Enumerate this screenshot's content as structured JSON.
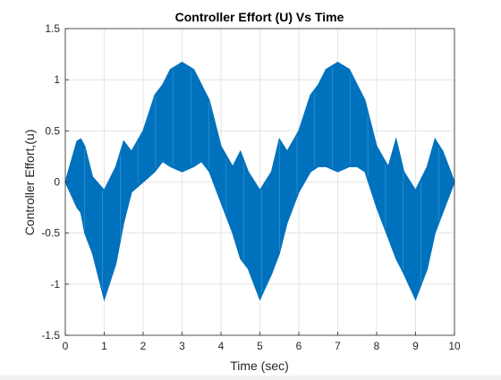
{
  "chart_data": {
    "type": "area",
    "title": "Controller Effort (U) Vs Time",
    "xlabel": "Time (sec)",
    "ylabel": "Controller Effort,(u)",
    "xlim": [
      0,
      10
    ],
    "ylim": [
      -1.5,
      1.5
    ],
    "xticks": [
      "0",
      "1",
      "2",
      "3",
      "4",
      "5",
      "6",
      "7",
      "8",
      "9",
      "10"
    ],
    "yticks": [
      "-1.5",
      "-1",
      "-0.5",
      "0",
      "0.5",
      "1",
      "1.5"
    ],
    "grid": true,
    "series": [
      {
        "color": "#0072BD",
        "note_style": "rapidly oscillating signal between upper and lower envelopes",
        "x": [
          0,
          0.3,
          0.4,
          0.5,
          0.7,
          1.0,
          1.3,
          1.5,
          1.7,
          2.0,
          2.3,
          2.5,
          2.7,
          3.0,
          3.3,
          3.5,
          3.7,
          4.0,
          4.3,
          4.5,
          4.7,
          5.0,
          5.3,
          5.5,
          5.7,
          6.0,
          6.3,
          6.5,
          6.7,
          7.0,
          7.3,
          7.5,
          7.7,
          8.0,
          8.3,
          8.5,
          8.7,
          9.0,
          9.3,
          9.5,
          9.7,
          10.0
        ],
        "upper": [
          0,
          0.4,
          0.42,
          0.35,
          0.05,
          -0.08,
          0.15,
          0.4,
          0.3,
          0.5,
          0.85,
          0.95,
          1.1,
          1.17,
          1.1,
          0.95,
          0.8,
          0.35,
          0.15,
          0.3,
          0.1,
          -0.08,
          0.1,
          0.42,
          0.3,
          0.5,
          0.85,
          0.95,
          1.1,
          1.17,
          1.1,
          0.95,
          0.8,
          0.35,
          0.15,
          0.42,
          0.1,
          -0.08,
          0.15,
          0.42,
          0.3,
          0.0
        ],
        "lower": [
          0,
          -0.25,
          -0.3,
          -0.5,
          -0.7,
          -1.15,
          -0.8,
          -0.4,
          -0.1,
          0.0,
          0.1,
          0.2,
          0.15,
          0.1,
          0.15,
          0.2,
          0.1,
          -0.2,
          -0.5,
          -0.75,
          -0.85,
          -1.15,
          -0.9,
          -0.7,
          -0.4,
          -0.1,
          0.1,
          0.15,
          0.15,
          0.1,
          0.15,
          0.15,
          0.1,
          -0.25,
          -0.55,
          -0.75,
          -0.9,
          -1.15,
          -0.85,
          -0.5,
          -0.3,
          0.0
        ]
      }
    ]
  }
}
